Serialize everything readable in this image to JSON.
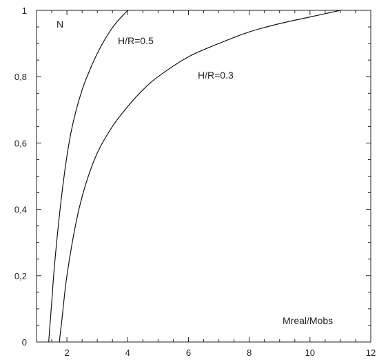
{
  "chart_data": {
    "type": "line",
    "title": "",
    "xlabel": "Mreal/Mobs",
    "ylabel": "N",
    "xlim": [
      1,
      12
    ],
    "ylim": [
      0,
      1
    ],
    "x_ticks": [
      2,
      4,
      6,
      8,
      10,
      12
    ],
    "x_tick_labels": [
      "2",
      "4",
      "6",
      "8",
      "10",
      "12"
    ],
    "y_ticks": [
      0,
      0.2,
      0.4,
      0.6,
      0.8,
      1
    ],
    "y_tick_labels": [
      "0",
      "0,2",
      "0,4",
      "0,6",
      "0,8",
      "1"
    ],
    "grid": false,
    "series": [
      {
        "name": "H/R=0.5",
        "x": [
          1.4,
          1.5,
          1.6,
          1.8,
          2.0,
          2.2,
          2.5,
          2.8,
          3.0,
          3.3,
          3.6,
          4.0
        ],
        "y": [
          0.0,
          0.12,
          0.24,
          0.42,
          0.56,
          0.66,
          0.76,
          0.83,
          0.87,
          0.92,
          0.96,
          1.0
        ]
      },
      {
        "name": "H/R=0.3",
        "x": [
          1.75,
          1.85,
          2.0,
          2.3,
          2.6,
          3.0,
          3.5,
          4.0,
          4.5,
          5.0,
          6.0,
          7.0,
          8.0,
          9.0,
          10.0,
          11.0
        ],
        "y": [
          0.0,
          0.08,
          0.2,
          0.36,
          0.47,
          0.57,
          0.65,
          0.71,
          0.76,
          0.8,
          0.86,
          0.9,
          0.935,
          0.96,
          0.98,
          1.0
        ]
      }
    ]
  },
  "labels": {
    "y_axis_label": "N",
    "x_axis_label": "Mreal/Mobs",
    "series_0_label": "H/R=0.5",
    "series_1_label": "H/R=0.3"
  },
  "colors": {
    "line": "#111111",
    "frame": "#222222"
  }
}
